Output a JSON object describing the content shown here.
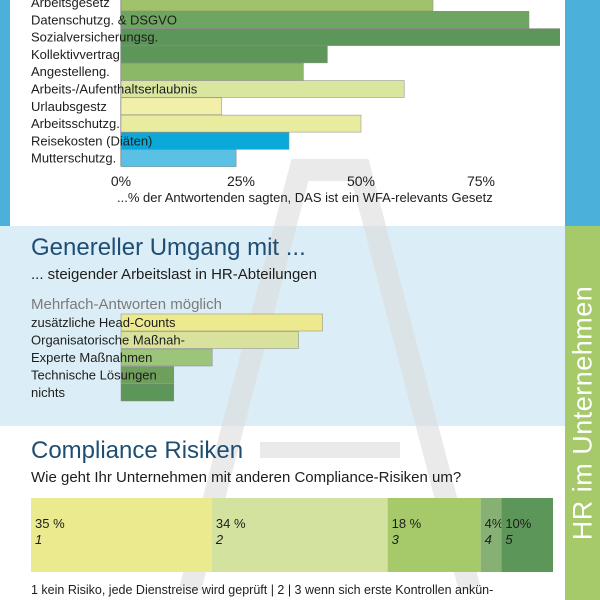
{
  "colors": {
    "top_band_strip": "#4cb1da",
    "side_strip": "#a6c96a",
    "mid_band": "#dbeef7",
    "title_blue": "#1f4e73"
  },
  "side_label": "HR im Unternehmen",
  "section_laws": {
    "caption": "...% der Antwortenden sagten, DAS ist ein WFA-relevants Gesetz"
  },
  "section_workload": {
    "title": "Genereller Umgang mit ...",
    "subtitle": "... steigender Arbeitslast in HR-Abteilungen",
    "note": "Mehrfach-Antworten möglich"
  },
  "section_compliance": {
    "title": "Compliance Risiken",
    "subtitle": "Wie geht Ihr Unternehmen mit anderen Compliance-Risiken um?",
    "legend": "1  kein Risiko, jede Dienstreise wird geprüft  |  2  |  3 wenn sich erste Kontrollen ankün-"
  },
  "chart_data": [
    {
      "type": "bar",
      "orientation": "horizontal",
      "categories": [
        "Arbeitsgesetz",
        "Datenschutzg. & DSGVO",
        "Sozialversicherungsg.",
        "Kollektivvertrag",
        "Angestelleng.",
        "Arbeits-/Aufenthaltserlaubnis",
        "Urlaubsgestz",
        "Arbeitsschutzg.",
        "Reisekosten (Diäten)",
        "Mutterschutzg."
      ],
      "values": [
        65,
        85,
        95,
        43,
        38,
        59,
        21,
        50,
        35,
        24
      ],
      "colors": [
        "#9fc26b",
        "#6ea561",
        "#5d9659",
        "#5d9659",
        "#8ab867",
        "#d9e6a0",
        "#f2efa9",
        "#e8ec9f",
        "#0ba9d9",
        "#5ac1e4"
      ],
      "xlim": [
        0,
        100
      ],
      "xticks": [
        "0%",
        "25%",
        "50%",
        "75%"
      ],
      "xtick_values": [
        0,
        25,
        50,
        75
      ],
      "grid": false,
      "legend": "none"
    },
    {
      "type": "bar",
      "orientation": "horizontal",
      "categories": [
        "zusätzliche Head-Counts",
        "Organisatorische Maßnah-",
        "Experte Maßnahmen",
        "Technische Lösungen",
        "nichts"
      ],
      "values": [
        42,
        37,
        19,
        11,
        11
      ],
      "colors": [
        "#ede98f",
        "#d8e29c",
        "#9cc57b",
        "#6f9f5c",
        "#5d9659"
      ],
      "xlim": [
        0,
        100
      ],
      "grid": false,
      "legend": "none"
    },
    {
      "type": "bar",
      "orientation": "horizontal",
      "stacked": true,
      "categories": [
        "1",
        "2",
        "3",
        "4",
        "5"
      ],
      "values": [
        35,
        34,
        18,
        4,
        10
      ],
      "data_labels": [
        "35 %",
        "34 %",
        "18 %",
        "4%",
        "10%"
      ],
      "colors": [
        "#ebea8e",
        "#d4e2a0",
        "#a6c96a",
        "#86b074",
        "#5d9659"
      ],
      "xlim": [
        0,
        101
      ],
      "grid": false,
      "legend": "bottom"
    }
  ]
}
